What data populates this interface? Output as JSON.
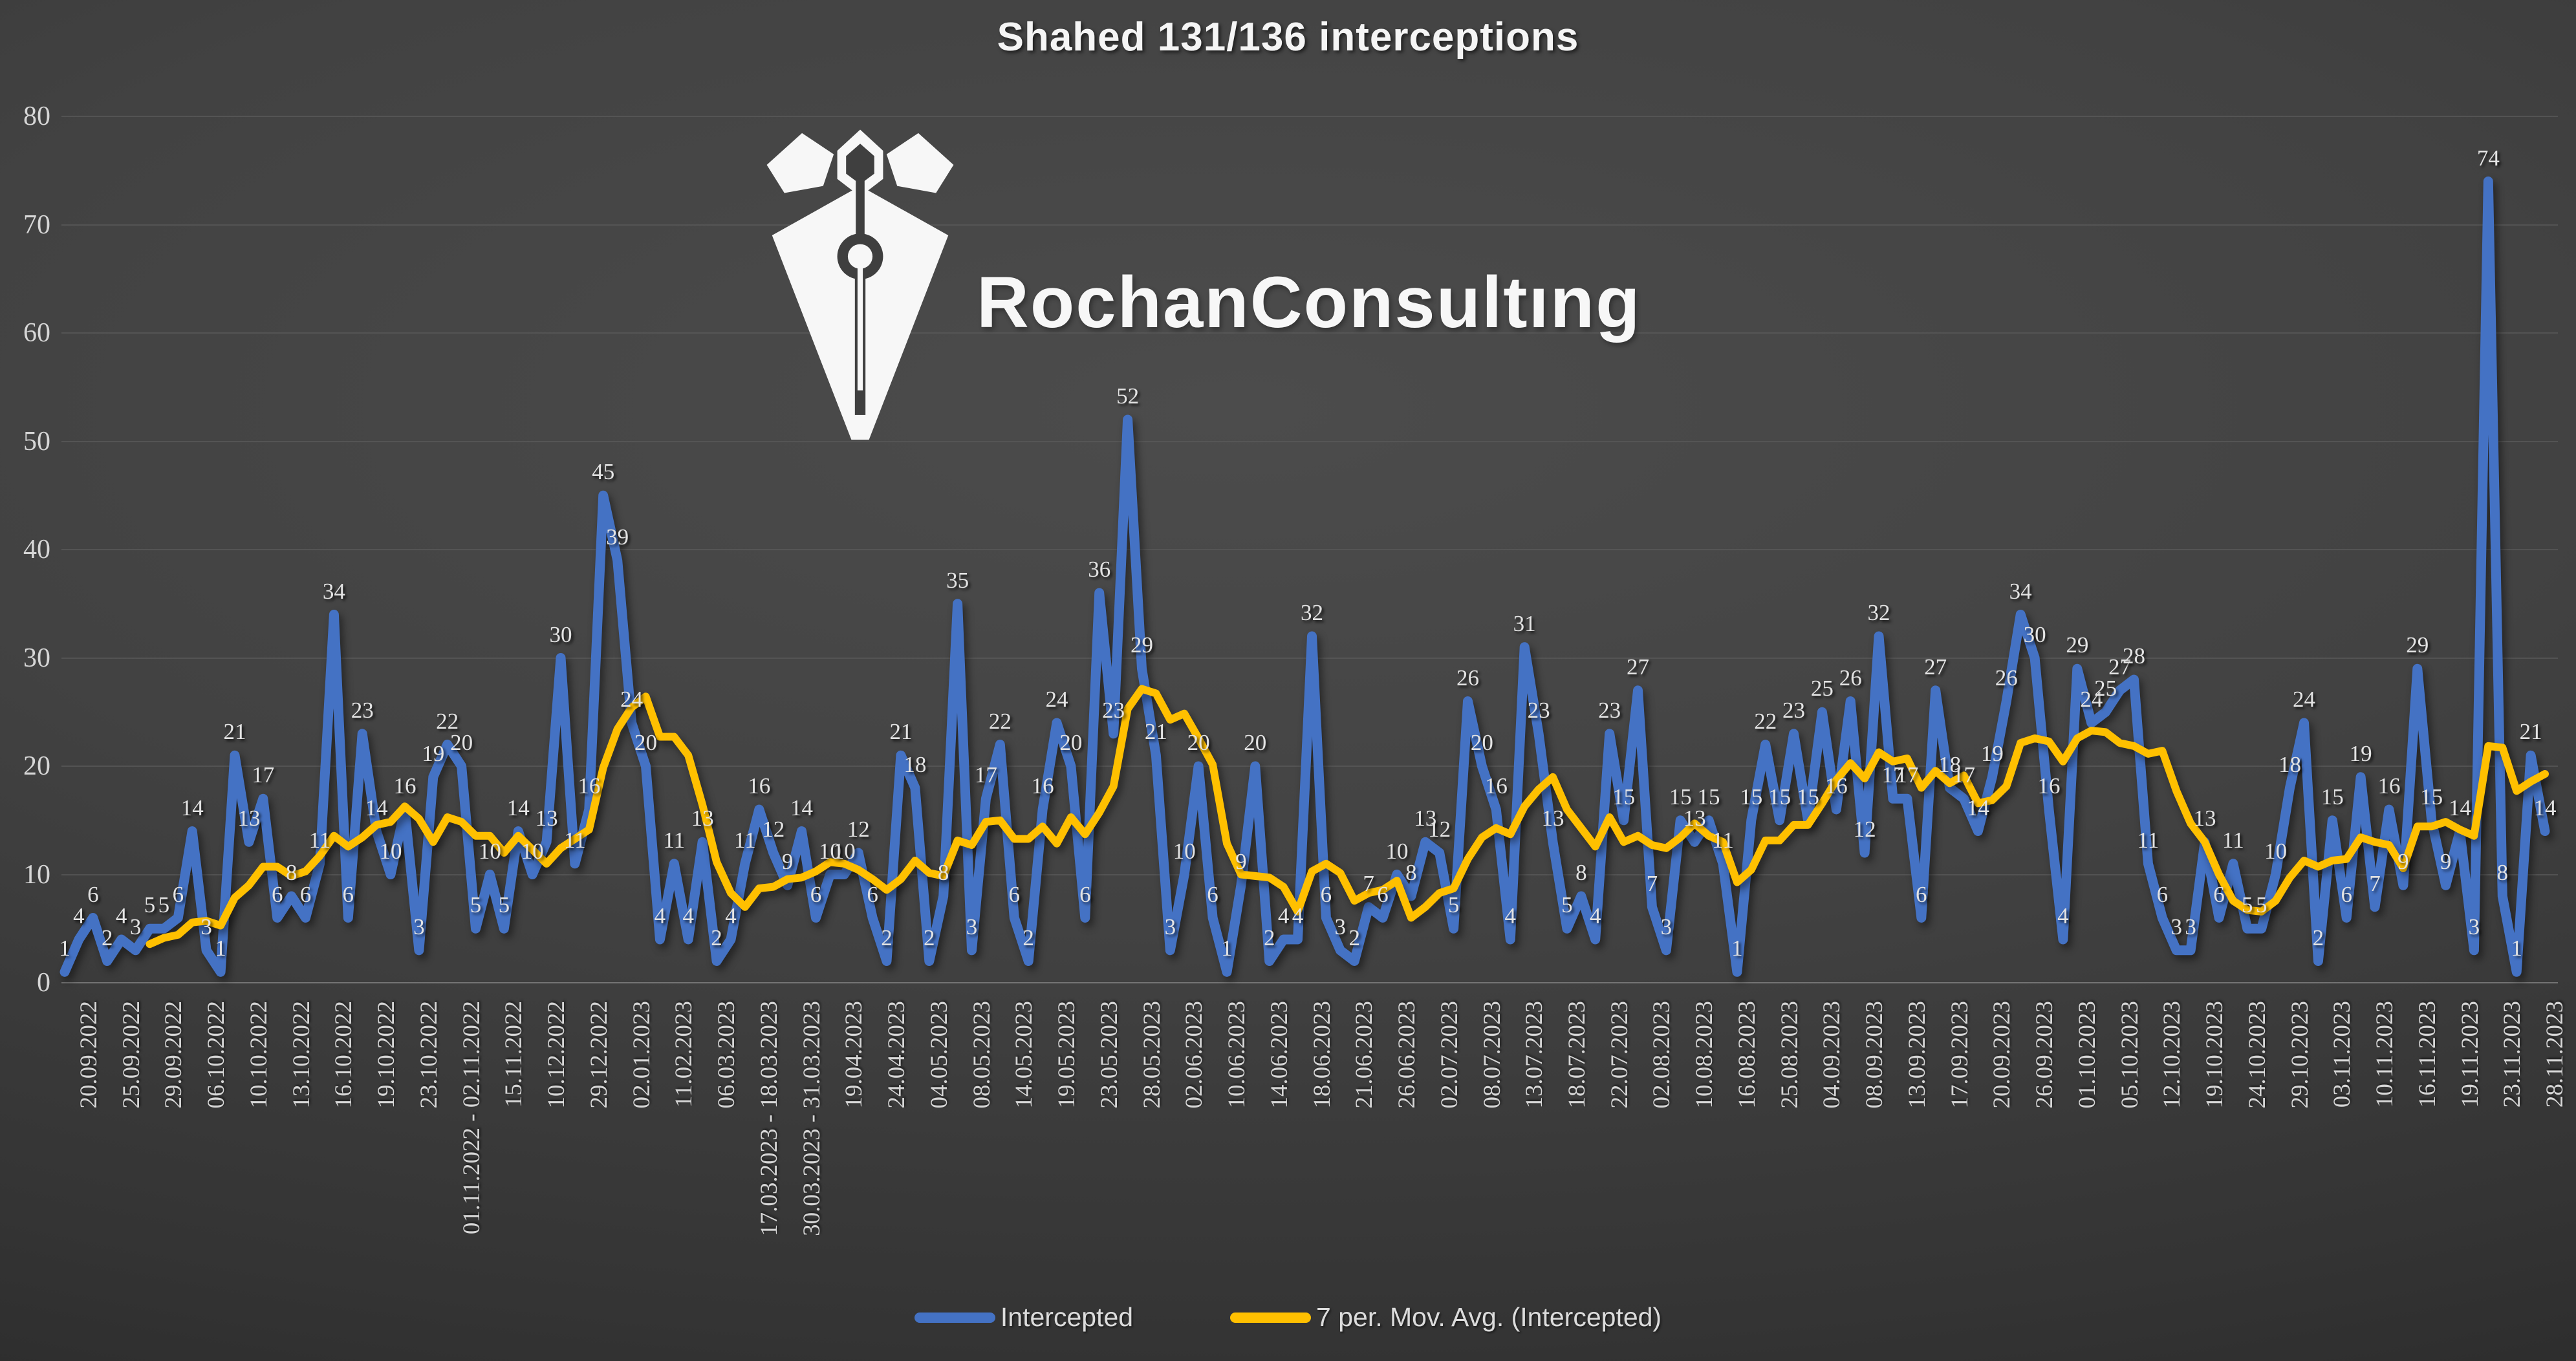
{
  "title": "Shahed 131/136 interceptions",
  "watermark": {
    "text": "RochanConsultıng"
  },
  "legend": {
    "items": [
      {
        "label": "Intercepted",
        "color": "#4472C4"
      },
      {
        "label": "7 per. Mov. Avg. (Intercepted)",
        "color": "#FFC000"
      }
    ]
  },
  "y_axis": {
    "min": 0,
    "max": 80,
    "step": 10,
    "tick_labels": [
      "0",
      "10",
      "20",
      "30",
      "40",
      "50",
      "60",
      "70",
      "80"
    ]
  },
  "chart_data": {
    "type": "line",
    "title": "Shahed 131/136 interceptions",
    "ylim": [
      0,
      80
    ],
    "grid": true,
    "data_labels": true,
    "legend_position": "bottom",
    "x_label_interval": 3,
    "x_label_rotation_degrees": 90,
    "x_tick_labels": [
      "20.09.2022",
      "25.09.2022",
      "29.09.2022",
      "06.10.2022",
      "10.10.2022",
      "13.10.2022",
      "16.10.2022",
      "19.10.2022",
      "23.10.2022",
      "01.11.2022 - 02.11.2022",
      "15.11.2022",
      "10.12.2022",
      "29.12.2022",
      "02.01.2023",
      "11.02.2023",
      "06.03.2023",
      "17.03.2023 - 18.03.2023",
      "30.03.2023 - 31.03.2023",
      "19.04.2023",
      "24.04.2023",
      "04.05.2023",
      "08.05.2023",
      "14.05.2023",
      "19.05.2023",
      "23.05.2023",
      "28.05.2023",
      "02.06.2023",
      "10.06.2023",
      "14.06.2023",
      "18.06.2023",
      "21.06.2023",
      "26.06.2023",
      "02.07.2023",
      "08.07.2023",
      "13.07.2023",
      "18.07.2023",
      "22.07.2023",
      "02.08.2023",
      "10.08.2023",
      "16.08.2023",
      "25.08.2023",
      "04.09.2023",
      "08.09.2023",
      "13.09.2023",
      "17.09.2023",
      "20.09.2023",
      "26.09.2023",
      "01.10.2023",
      "05.10.2023",
      "12.10.2023",
      "19.10.2023",
      "24.10.2023",
      "29.10.2023",
      "03.11.2023",
      "10.11.2023",
      "16.11.2023",
      "19.11.2023",
      "23.11.2023",
      "28.11.2023"
    ],
    "series": [
      {
        "name": "Intercepted",
        "color": "#4472C4",
        "values": [
          1,
          4,
          6,
          2,
          4,
          3,
          5,
          5,
          6,
          14,
          3,
          1,
          21,
          13,
          17,
          6,
          8,
          6,
          11,
          34,
          6,
          23,
          14,
          10,
          16,
          3,
          19,
          22,
          20,
          5,
          10,
          5,
          14,
          10,
          13,
          30,
          11,
          16,
          45,
          39,
          24,
          20,
          4,
          11,
          4,
          13,
          2,
          4,
          11,
          16,
          12,
          9,
          14,
          6,
          10,
          10,
          12,
          6,
          2,
          21,
          18,
          2,
          8,
          35,
          3,
          17,
          22,
          6,
          2,
          16,
          24,
          20,
          6,
          36,
          23,
          52,
          29,
          21,
          3,
          10,
          20,
          6,
          1,
          9,
          20,
          2,
          4,
          4,
          32,
          6,
          3,
          2,
          7,
          6,
          10,
          8,
          13,
          12,
          5,
          26,
          20,
          16,
          4,
          31,
          23,
          13,
          5,
          8,
          4,
          23,
          15,
          27,
          7,
          3,
          15,
          13,
          15,
          11,
          1,
          15,
          22,
          15,
          23,
          15,
          25,
          16,
          26,
          12,
          32,
          17,
          17,
          6,
          27,
          18,
          17,
          14,
          19,
          26,
          34,
          30,
          16,
          4,
          29,
          24,
          25,
          27,
          28,
          11,
          6,
          3,
          3,
          13,
          6,
          11,
          5,
          5,
          10,
          18,
          24,
          2,
          15,
          6,
          19,
          7,
          16,
          9,
          29,
          15,
          9,
          14,
          3,
          74,
          8,
          1,
          21,
          14
        ]
      },
      {
        "name": "7 per. Mov. Avg. (Intercepted)",
        "color": "#FFC000",
        "derived_from": "Intercepted",
        "window": 7
      }
    ]
  }
}
